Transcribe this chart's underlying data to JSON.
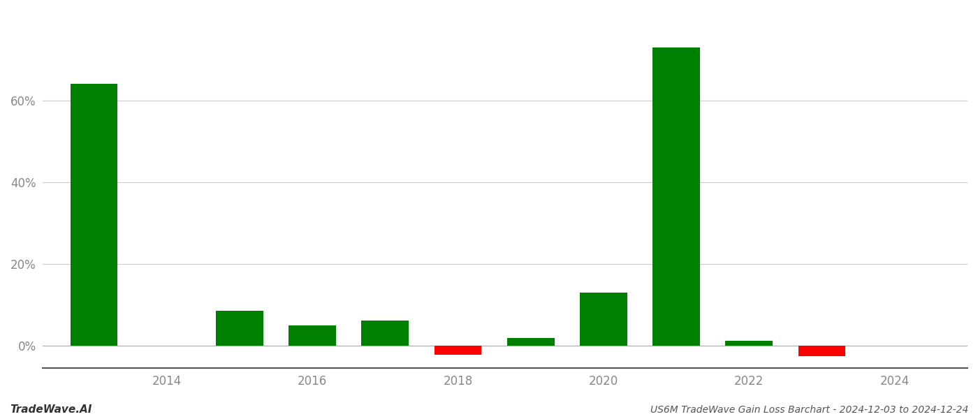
{
  "years": [
    2013,
    2015,
    2016,
    2017,
    2018,
    2019,
    2020,
    2021,
    2022,
    2023
  ],
  "values": [
    0.64,
    0.085,
    0.05,
    0.062,
    -0.022,
    0.019,
    0.13,
    0.73,
    0.012,
    -0.025
  ],
  "background_color": "#ffffff",
  "grid_color": "#cccccc",
  "axis_color": "#888888",
  "title_text": "US6M TradeWave Gain Loss Barchart - 2024-12-03 to 2024-12-24",
  "watermark_text": "TradeWave.AI",
  "green_color": "#008000",
  "red_color": "#ff0000",
  "xlim": [
    2012.3,
    2025.0
  ],
  "ylim": [
    -0.055,
    0.82
  ],
  "xtick_years": [
    2014,
    2016,
    2018,
    2020,
    2022,
    2024
  ],
  "ytick_values": [
    0.0,
    0.2,
    0.4,
    0.6
  ],
  "bar_width": 0.65
}
